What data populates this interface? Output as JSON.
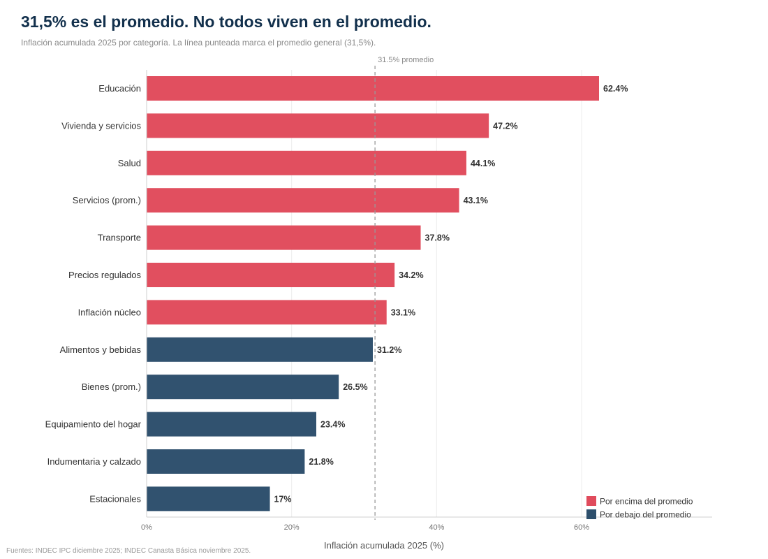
{
  "header": {
    "title": "31,5% es el promedio. No todos viven en el promedio.",
    "subtitle": "Inflación acumulada 2025 por categoría. La línea punteada marca el promedio general (31,5%)."
  },
  "footer": {
    "source": "Fuentes: INDEC IPC diciembre 2025; INDEC Canasta Básica noviembre 2025."
  },
  "chart_data": {
    "type": "bar",
    "orientation": "horizontal",
    "xlabel": "Inflación acumulada 2025 (%)",
    "ylabel": "",
    "xlim": [
      0,
      78
    ],
    "x_ticks": [
      0,
      20,
      40,
      60
    ],
    "x_tick_labels": [
      "0%",
      "20%",
      "40%",
      "60%"
    ],
    "grid": "vertical",
    "categories": [
      "Educación",
      "Vivienda y servicios",
      "Salud",
      "Servicios (prom.)",
      "Transporte",
      "Precios regulados",
      "Inflación núcleo",
      "Alimentos y bebidas",
      "Bienes (prom.)",
      "Equipamiento del hogar",
      "Indumentaria y calzado",
      "Estacionales"
    ],
    "values": [
      62.4,
      47.2,
      44.1,
      43.1,
      37.8,
      34.2,
      33.1,
      31.2,
      26.5,
      23.4,
      21.8,
      17
    ],
    "value_labels": [
      "62.4%",
      "47.2%",
      "44.1%",
      "43.1%",
      "37.8%",
      "34.2%",
      "33.1%",
      "31.2%",
      "26.5%",
      "23.4%",
      "21.8%",
      "17%"
    ],
    "group": [
      "above",
      "above",
      "above",
      "above",
      "above",
      "above",
      "above",
      "below",
      "below",
      "below",
      "below",
      "below"
    ],
    "reference_line": {
      "value": 31.5,
      "label": "31.5% promedio",
      "style": "dashed"
    },
    "legend": {
      "position": "bottom-right",
      "items": [
        {
          "key": "above",
          "label": "Por encima del promedio",
          "color": "#e04b5c"
        },
        {
          "key": "below",
          "label": "Por debajo del promedio",
          "color": "#2d4f6c"
        }
      ]
    }
  }
}
